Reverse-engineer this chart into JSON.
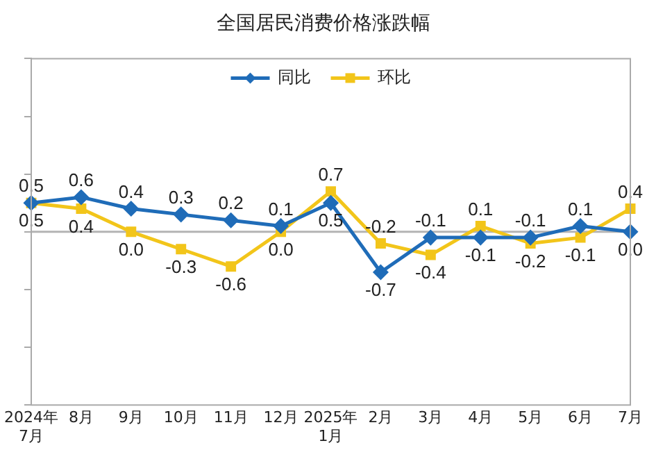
{
  "chart_data": {
    "type": "line",
    "title": "全国居民消费价格涨跌幅",
    "categories": [
      "2024年\n7月",
      "8月",
      "9月",
      "10月",
      "11月",
      "12月",
      "2025年\n1月",
      "2月",
      "3月",
      "4月",
      "5月",
      "6月",
      "7月"
    ],
    "series": [
      {
        "name": "同比",
        "color": "#1f6cb8",
        "marker": "diamond",
        "values": [
          0.5,
          0.6,
          0.4,
          0.3,
          0.2,
          0.1,
          0.5,
          -0.7,
          -0.1,
          -0.1,
          -0.1,
          0.1,
          0.0
        ],
        "value_labels": [
          "0.5",
          "0.6",
          "0.4",
          "0.3",
          "0.2",
          "0.1",
          "0.5",
          "-0.7",
          "-0.1",
          "-0.1",
          "-0.1",
          "0.1",
          "0.0"
        ]
      },
      {
        "name": "环比",
        "color": "#f2c51a",
        "marker": "square",
        "values": [
          0.5,
          0.4,
          0.0,
          -0.3,
          -0.6,
          0.0,
          0.7,
          -0.2,
          -0.4,
          0.1,
          -0.2,
          -0.1,
          0.4
        ],
        "value_labels": [
          "0.5",
          "0.4",
          "0.0",
          "-0.3",
          "-0.6",
          "0.0",
          "0.7",
          "-0.2",
          "-0.4",
          "0.1",
          "-0.2",
          "-0.1",
          "0.4"
        ]
      }
    ],
    "ylim": [
      -3,
      3
    ],
    "yticks": [
      {
        "value": -3,
        "label": null
      },
      {
        "value": -2,
        "label": null
      },
      {
        "value": -1,
        "label": null
      },
      {
        "value": 0,
        "label": null
      },
      {
        "value": 1,
        "label": null
      },
      {
        "value": 2,
        "label": null
      },
      {
        "value": 3,
        "label": null
      }
    ],
    "tick_labels": "x",
    "grid": false,
    "legend": "top",
    "line_style": "solid",
    "ref_lines": [
      {
        "axis": "y",
        "value": 0,
        "color": "#b4b4b4"
      }
    ]
  }
}
